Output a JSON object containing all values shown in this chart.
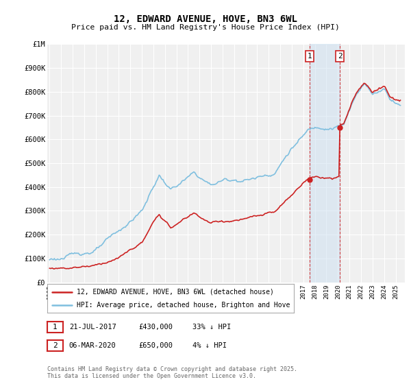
{
  "title": "12, EDWARD AVENUE, HOVE, BN3 6WL",
  "subtitle": "Price paid vs. HM Land Registry's House Price Index (HPI)",
  "ylabel_ticks": [
    "£0",
    "£100K",
    "£200K",
    "£300K",
    "£400K",
    "£500K",
    "£600K",
    "£700K",
    "£800K",
    "£900K",
    "£1M"
  ],
  "ylim": [
    0,
    1000000
  ],
  "yticks": [
    0,
    100000,
    200000,
    300000,
    400000,
    500000,
    600000,
    700000,
    800000,
    900000,
    1000000
  ],
  "background_color": "#ffffff",
  "plot_bg_color": "#f0f0f0",
  "grid_color": "#ffffff",
  "hpi_color": "#7fbfdf",
  "price_color": "#cc2222",
  "sale1_year": 2017.54,
  "sale1_price": 430000,
  "sale2_year": 2020.17,
  "sale2_price": 650000,
  "highlight_color": "#cce0f0",
  "dashed_line_color": "#cc2222",
  "legend_line1": "12, EDWARD AVENUE, HOVE, BN3 6WL (detached house)",
  "legend_line2": "HPI: Average price, detached house, Brighton and Hove",
  "sale1_note_col1": "21-JUL-2017",
  "sale1_note_col2": "£430,000",
  "sale1_note_col3": "33% ↓ HPI",
  "sale2_note_col1": "06-MAR-2020",
  "sale2_note_col2": "£650,000",
  "sale2_note_col3": "4% ↓ HPI",
  "footnote1": "Contains HM Land Registry data © Crown copyright and database right 2025.",
  "footnote2": "This data is licensed under the Open Government Licence v3.0.",
  "xstart_year": 1995,
  "xend_year": 2025
}
